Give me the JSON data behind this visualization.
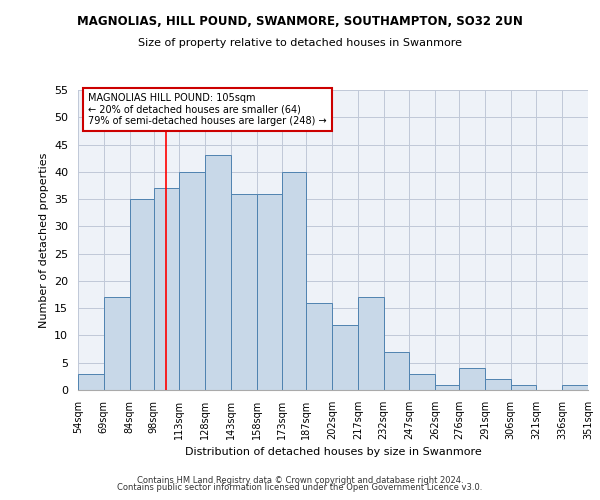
{
  "title": "MAGNOLIAS, HILL POUND, SWANMORE, SOUTHAMPTON, SO32 2UN",
  "subtitle": "Size of property relative to detached houses in Swanmore",
  "xlabel": "Distribution of detached houses by size in Swanmore",
  "ylabel": "Number of detached properties",
  "bar_values": [
    3,
    17,
    35,
    37,
    40,
    43,
    36,
    36,
    40,
    16,
    12,
    17,
    7,
    3,
    1,
    4,
    2,
    1,
    0,
    1
  ],
  "bin_edges": [
    54,
    69,
    84,
    98,
    113,
    128,
    143,
    158,
    173,
    187,
    202,
    217,
    232,
    247,
    262,
    276,
    291,
    306,
    321,
    336,
    351
  ],
  "tick_labels": [
    "54sqm",
    "69sqm",
    "84sqm",
    "98sqm",
    "113sqm",
    "128sqm",
    "143sqm",
    "158sqm",
    "173sqm",
    "187sqm",
    "202sqm",
    "217sqm",
    "232sqm",
    "247sqm",
    "262sqm",
    "276sqm",
    "291sqm",
    "306sqm",
    "321sqm",
    "336sqm",
    "351sqm"
  ],
  "bar_color": "#c8d8e8",
  "bar_edge_color": "#4f82b0",
  "grid_color": "#c0c8d8",
  "background_color": "#eef2f8",
  "red_line_x": 105,
  "annotation_text": "MAGNOLIAS HILL POUND: 105sqm\n← 20% of detached houses are smaller (64)\n79% of semi-detached houses are larger (248) →",
  "annotation_box_color": "#ffffff",
  "annotation_box_edge": "#cc0000",
  "ylim": [
    0,
    55
  ],
  "yticks": [
    0,
    5,
    10,
    15,
    20,
    25,
    30,
    35,
    40,
    45,
    50,
    55
  ],
  "footnote1": "Contains HM Land Registry data © Crown copyright and database right 2024.",
  "footnote2": "Contains public sector information licensed under the Open Government Licence v3.0."
}
